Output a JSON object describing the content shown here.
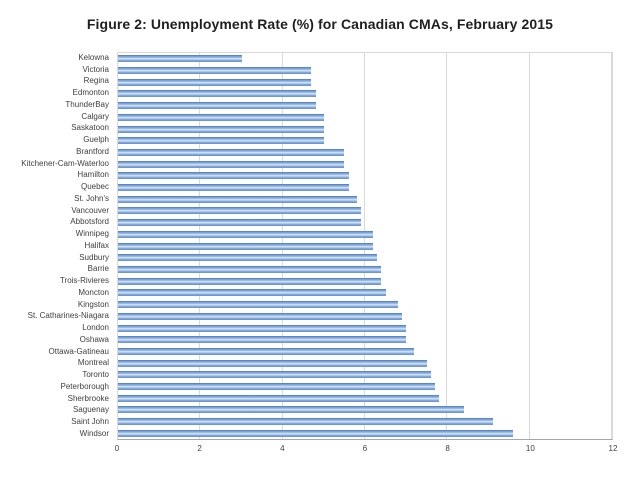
{
  "title": "Figure 2: Unemployment Rate (%) for Canadian CMAs, February 2015",
  "chart_data": {
    "type": "bar",
    "orientation": "horizontal",
    "title": "Figure 2: Unemployment Rate (%) for Canadian CMAs, February 2015",
    "xlabel": "",
    "ylabel": "",
    "categories": [
      "Kelowna",
      "Victoria",
      "Regina",
      "Edmonton",
      "ThunderBay",
      "Calgary",
      "Saskatoon",
      "Guelph",
      "Brantford",
      "Kitchener-Cam-Waterloo",
      "Hamilton",
      "Quebec",
      "St. John's",
      "Vancouver",
      "Abbotsford",
      "Winnipeg",
      "Halifax",
      "Sudbury",
      "Barrie",
      "Trois-Rivieres",
      "Moncton",
      "Kingston",
      "St. Catharines-Niagara",
      "London",
      "Oshawa",
      "Ottawa-Gatineau",
      "Montreal",
      "Toronto",
      "Peterborough",
      "Sherbrooke",
      "Saguenay",
      "Saint John",
      "Windsor"
    ],
    "values": [
      3.0,
      4.7,
      4.7,
      4.8,
      4.8,
      5.0,
      5.0,
      5.0,
      5.5,
      5.5,
      5.6,
      5.6,
      5.8,
      5.9,
      5.9,
      6.2,
      6.2,
      6.3,
      6.4,
      6.4,
      6.5,
      6.8,
      6.9,
      7.0,
      7.0,
      7.2,
      7.5,
      7.6,
      7.7,
      7.8,
      8.4,
      9.1,
      9.6
    ],
    "xlim": [
      0,
      12
    ],
    "xticks": [
      0,
      2,
      4,
      6,
      8,
      10,
      12
    ],
    "grid": "vertical",
    "legend": "none",
    "bar_color": "#89ABDC",
    "bar_gradient_edge": "#6D98D1",
    "bar_gradient_center": "#DDE9F8",
    "gridline_color": "#D9D9D9",
    "axis_line_color": "#A6A6A6",
    "title_color": "#1F1F1F",
    "tick_label_color": "#404040",
    "background_color": "#FFFFFF"
  }
}
